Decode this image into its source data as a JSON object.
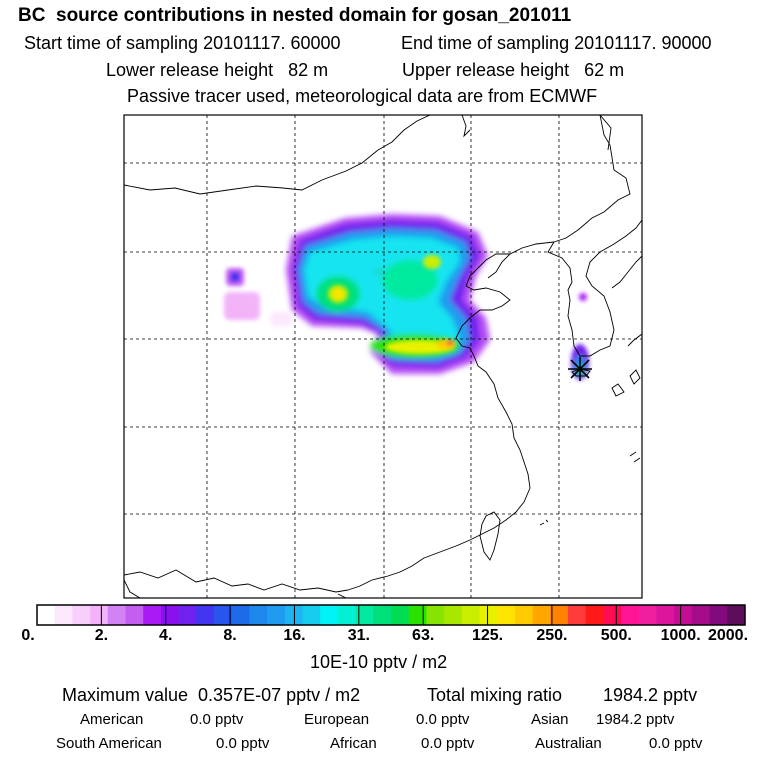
{
  "header": {
    "title": "BC  source contributions in nested domain for gosan_201011",
    "start_time": "Start time of sampling 20101117. 60000",
    "end_time": "End time of sampling 20101117. 90000",
    "lower_release": "Lower release height   82 m",
    "upper_release": "Upper release height   62 m",
    "tracer_note": "Passive tracer used, meteorological data are from ECMWF"
  },
  "colorbar": {
    "tick_labels": [
      "0.",
      "2.",
      "4.",
      "8.",
      "16.",
      "31.",
      "63.",
      "125.",
      "250.",
      "500.",
      "1000.",
      "2000."
    ],
    "colors": [
      "#ffffff",
      "#fce8fd",
      "#f8cffb",
      "#f2b3f9",
      "#d382f5",
      "#c45ef3",
      "#a91bf5",
      "#8a10f0",
      "#6f22ee",
      "#4336f0",
      "#2855ee",
      "#1f6ae8",
      "#1d88ec",
      "#1f9cef",
      "#1eb3f1",
      "#16cdf0",
      "#00f3f5",
      "#03f0d4",
      "#02ea9f",
      "#00e07a",
      "#00dd55",
      "#2ae200",
      "#86e400",
      "#a8e800",
      "#cbed00",
      "#e8f200",
      "#ffe400",
      "#ffca00",
      "#ffa600",
      "#ff8200",
      "#ff3b3b",
      "#ff1919",
      "#ff0d52",
      "#ff1493",
      "#f01fa0",
      "#dd159c",
      "#c30e94",
      "#a50c8c",
      "#830a7d",
      "#5c0e5c"
    ],
    "units": "10E-10 pptv / m2"
  },
  "summary": {
    "max_value": "Maximum value  0.357E-07 pptv / m2",
    "total_mixing_label": "Total mixing ratio",
    "total_mixing_value": "1984.2 pptv",
    "regions": [
      {
        "name": "American",
        "value": "0.0 pptv"
      },
      {
        "name": "European",
        "value": "0.0 pptv"
      },
      {
        "name": "Asian",
        "value": "1984.2 pptv"
      },
      {
        "name": "South American",
        "value": "0.0 pptv"
      },
      {
        "name": "African",
        "value": "0.0 pptv"
      },
      {
        "name": "Australian",
        "value": "0.0 pptv"
      }
    ]
  }
}
